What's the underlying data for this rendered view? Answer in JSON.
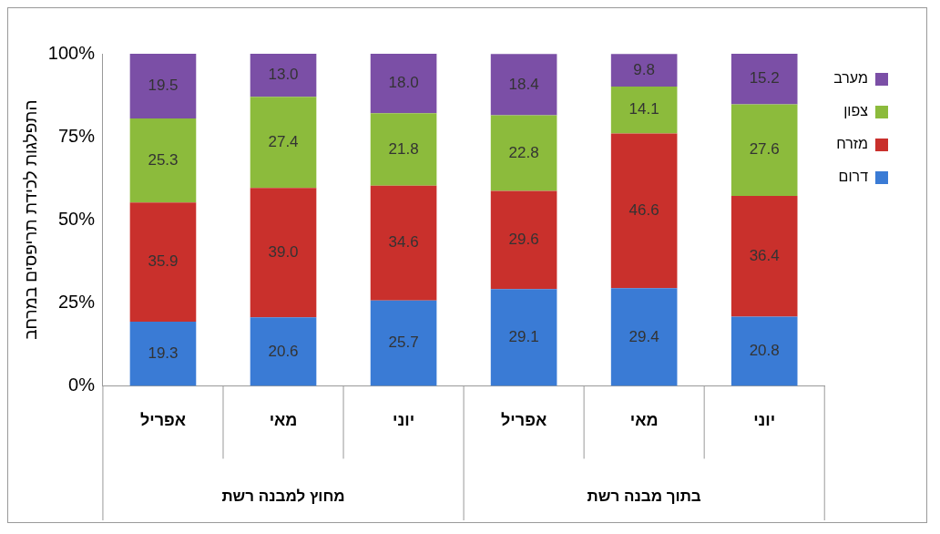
{
  "chart_data": {
    "type": "bar",
    "stacked": true,
    "ylabel": "התפלגות לכידת תריפסים במרחב",
    "categories": [
      "אפריל",
      "מאי",
      "יוני",
      "אפריל",
      "מאי",
      "יוני"
    ],
    "series": [
      {
        "name": "דרום",
        "color": "#3a7bd5",
        "values": [
          19.3,
          20.6,
          25.7,
          29.1,
          29.4,
          20.8
        ],
        "value_labels": [
          "19.3",
          "20.6",
          "25.7",
          "29.1",
          "29.4",
          "20.8"
        ]
      },
      {
        "name": "מזרח",
        "color": "#c9302c",
        "values": [
          35.9,
          39.0,
          34.6,
          29.6,
          46.6,
          36.4
        ],
        "value_labels": [
          "35.9",
          "39.0",
          "34.6",
          "29.6",
          "46.6",
          "36.4"
        ]
      },
      {
        "name": "צפון",
        "color": "#8cbb3c",
        "values": [
          25.3,
          27.4,
          21.8,
          22.8,
          14.1,
          27.6
        ],
        "value_labels": [
          "25.3",
          "27.4",
          "21.8",
          "22.8",
          "14.1",
          "27.6"
        ]
      },
      {
        "name": "מערב",
        "color": "#7b4fa6",
        "values": [
          19.5,
          13.0,
          18.0,
          18.4,
          9.8,
          15.2
        ],
        "value_labels": [
          "19.5",
          "13.0",
          "18.0",
          "18.4",
          "9.8",
          "15.2"
        ]
      }
    ],
    "ylim": [
      0,
      100
    ],
    "yticks": [
      {
        "value": 0,
        "label": "0%"
      },
      {
        "value": 25,
        "label": "25%"
      },
      {
        "value": 50,
        "label": "50%"
      },
      {
        "value": 75,
        "label": "75%"
      },
      {
        "value": 100,
        "label": "100%"
      }
    ],
    "annotations": [
      "מחוץ למבנה רשת",
      "בתוך מבנה רשת"
    ],
    "legend": "right",
    "grid": false
  }
}
